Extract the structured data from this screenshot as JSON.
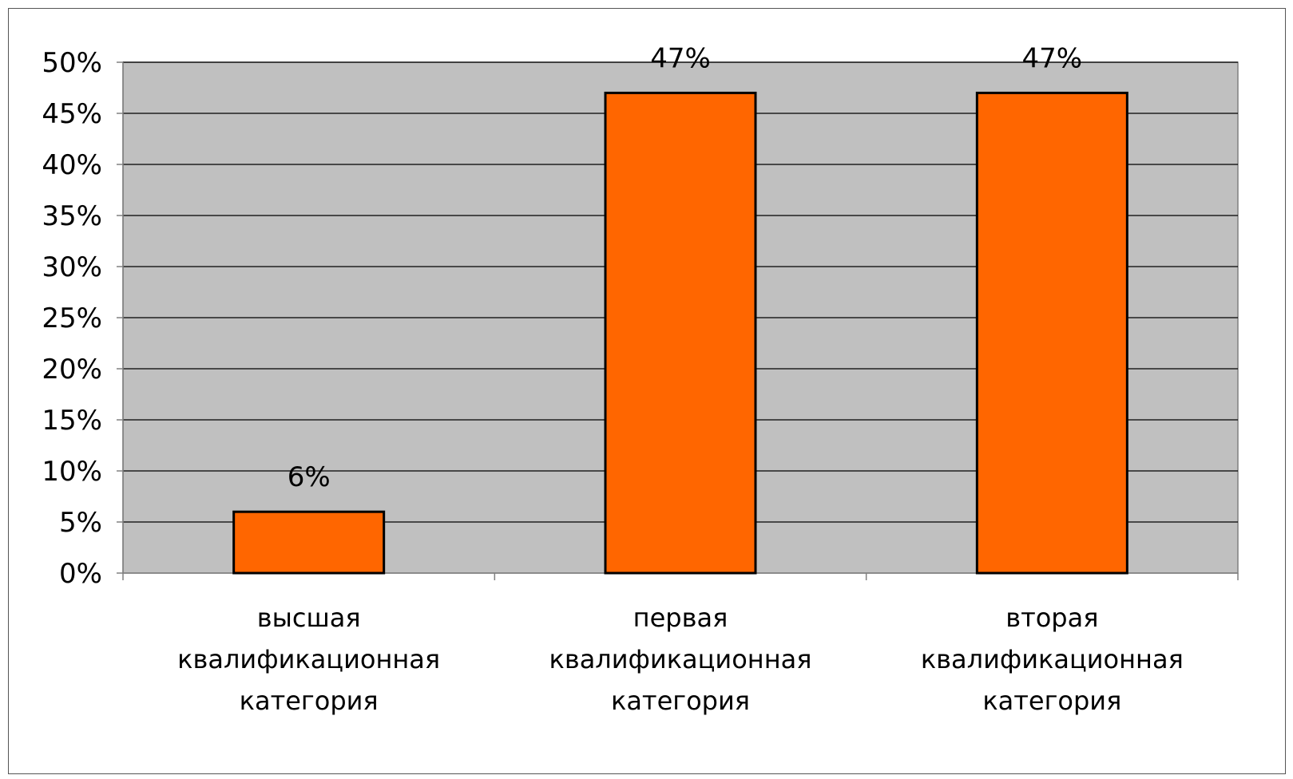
{
  "chart_data": {
    "type": "bar",
    "categories": [
      [
        "высшая",
        "квалификационная",
        "категория"
      ],
      [
        "первая",
        "квалификационная",
        "категория"
      ],
      [
        "вторая",
        "квалификационная",
        "категория"
      ]
    ],
    "values": [
      6,
      47,
      47
    ],
    "data_labels": [
      "6%",
      "47%",
      "47%"
    ],
    "y_tick_labels": [
      "0%",
      "5%",
      "10%",
      "15%",
      "20%",
      "25%",
      "30%",
      "35%",
      "40%",
      "45%",
      "50%"
    ],
    "ylim": [
      0,
      50
    ],
    "y_step": 5,
    "grid": true,
    "legend": "none",
    "colors": {
      "bar_fill": "#FF6600",
      "bar_stroke": "#000000",
      "plot_background": "#C0C0C0",
      "gridline": "#000000",
      "axis": "#808080"
    }
  }
}
